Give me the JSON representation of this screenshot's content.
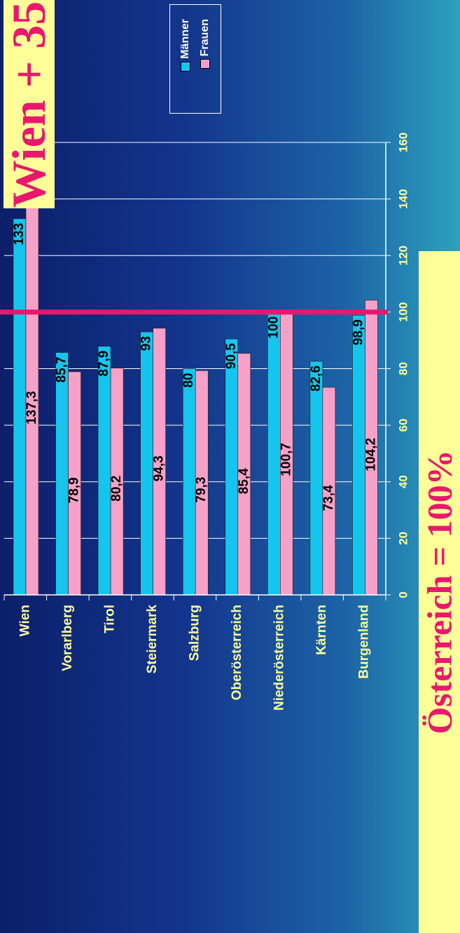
{
  "chart_data": {
    "type": "bar",
    "categories": [
      "Wien",
      "Vorarlberg",
      "Tirol",
      "Steiermark",
      "Salzburg",
      "Oberösterreich",
      "Niederösterreich",
      "Kärnten",
      "Burgenland"
    ],
    "series": [
      {
        "name": "Männer",
        "values": [
          133,
          85.7,
          87.9,
          93,
          80,
          90.5,
          100,
          82.6,
          98.9
        ],
        "labels": [
          "133",
          "85,7",
          "87,9",
          "93",
          "80",
          "90,5",
          "100",
          "82,6",
          "98,9"
        ],
        "color": "#16c5ee"
      },
      {
        "name": "Frauen",
        "values": [
          137.3,
          78.9,
          80.2,
          94.3,
          79.3,
          85.4,
          100.7,
          73.4,
          104.2
        ],
        "labels": [
          "137,3",
          "78,9",
          "80,2",
          "94,3",
          "79,3",
          "85,4",
          "100,7",
          "73,4",
          "104,2"
        ],
        "color": "#f7a1c9"
      }
    ],
    "value_axis": {
      "range": [
        0,
        160
      ],
      "ticks": [
        0,
        20,
        40,
        60,
        80,
        100,
        120,
        140,
        160
      ],
      "tick_labels": [
        "0",
        "20",
        "40",
        "60",
        "80",
        "100",
        "120",
        "140",
        "160"
      ]
    },
    "reference_line": {
      "value": 100,
      "color": "#e8186d"
    },
    "grid": true,
    "legend_position": "top-right",
    "orientation": "rotated",
    "colors": {
      "category_label": "#ffff99",
      "tick_label": "#ffff99",
      "bar_value_label": "#000000",
      "gridline": "#ffffff",
      "callout_bg": "#ffff99",
      "callout_text": "#e8186d"
    }
  },
  "callouts": {
    "wien_delta": "Wien + 35",
    "austria_reference": "Österreich = 100%"
  }
}
